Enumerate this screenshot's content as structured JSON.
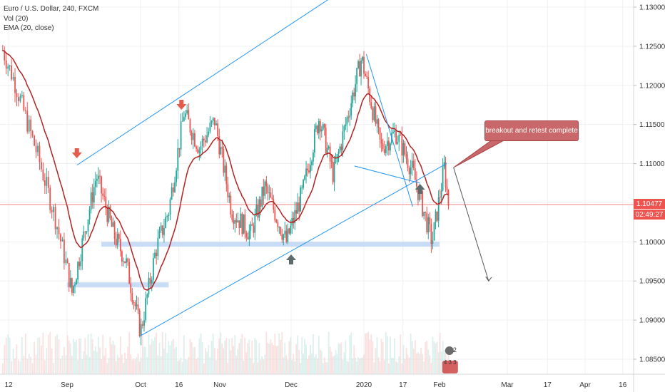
{
  "legend": {
    "symbol": "Euro / U.S. Dollar, 240, FXCM",
    "vol": "Vol (20)",
    "ema": "EMA (20, close)"
  },
  "callout_text": "breakout and retest complete",
  "price_tag": "1.10477",
  "countdown_tag": "02:49:27",
  "event_badges": [
    "2",
    "4",
    "3",
    "3"
  ],
  "colors": {
    "up": "#26a69a",
    "down": "#ef5350",
    "ema": "#b22222",
    "trendline": "#2196f3",
    "zone": "#c9dcf5",
    "arrow_red": "#e55a4b",
    "arrow_gray": "#5c6c6c",
    "price_line": "#ef5350"
  },
  "chart_data": {
    "type": "candlestick",
    "title": "Euro / U.S. Dollar, 240, FXCM",
    "indicators": [
      "Vol (20)",
      "EMA (20, close)"
    ],
    "y_axis": {
      "ticks": [
        "1.13000",
        "1.12500",
        "1.12000",
        "1.11500",
        "1.11000",
        "1.10500",
        "1.10000",
        "1.09500",
        "1.09000",
        "1.08500"
      ],
      "range": [
        1.083,
        1.1315
      ]
    },
    "x_axis": {
      "ticks": [
        "12",
        "Sep",
        "Oct",
        "16",
        "Nov",
        "Dec",
        "2020",
        "17",
        "Feb",
        "Mar",
        "17",
        "Apr",
        "16"
      ]
    },
    "current_price": 1.10477,
    "price_path": [
      [
        "Aug 10",
        1.1245
      ],
      [
        "Aug 14",
        1.1205
      ],
      [
        "Aug 22",
        1.111
      ],
      [
        "Aug 28",
        1.103
      ],
      [
        "Sep 3",
        1.0935
      ],
      [
        "Sep 10",
        1.104
      ],
      [
        "Sep 13",
        1.1085
      ],
      [
        "Sep 20",
        1.101
      ],
      [
        "Sep 25",
        1.0975
      ],
      [
        "Oct 1",
        1.0885
      ],
      [
        "Oct 7",
        1.099
      ],
      [
        "Oct 12",
        1.104
      ],
      [
        "Oct 18",
        1.1165
      ],
      [
        "Oct 24",
        1.112
      ],
      [
        "Oct 30",
        1.1155
      ],
      [
        "Nov 6",
        1.104
      ],
      [
        "Nov 14",
        1.101
      ],
      [
        "Nov 20",
        1.107
      ],
      [
        "Nov 29",
        1.1
      ],
      [
        "Dec 6",
        1.1065
      ],
      [
        "Dec 13",
        1.116
      ],
      [
        "Dec 19",
        1.1085
      ],
      [
        "Dec 31",
        1.1235
      ],
      [
        "Jan 8",
        1.112
      ],
      [
        "Jan 14",
        1.114
      ],
      [
        "Jan 21",
        1.109
      ],
      [
        "Jan 29",
        1.1
      ],
      [
        "Feb 3",
        1.1095
      ],
      [
        "Feb 5",
        1.1045
      ]
    ],
    "annotations": {
      "trend_channel_upper": [
        [
          "Sep 5",
          1.1098
        ],
        [
          "Jan 6",
          1.135
        ]
      ],
      "trend_channel_lower": [
        [
          "Oct 1",
          1.088
        ],
        [
          "Feb 4",
          1.11
        ]
      ],
      "support_zones": [
        {
          "from": "Sep 1",
          "to": "Oct 12",
          "level": 1.0945
        },
        {
          "from": "Sep 15",
          "to": "Feb 1",
          "level": 1.0997
        }
      ],
      "falling_wedge": [
        [
          "Jan 2",
          1.124
        ],
        [
          "Jan 21",
          1.1045
        ]
      ],
      "projection_arrow": [
        [
          "Feb 7",
          1.1095
        ],
        [
          "Feb 22",
          1.095
        ]
      ],
      "down_arrows": [
        "Sep 5",
        "Oct 17"
      ],
      "up_arrows": [
        "Dec 1",
        "Jan 24"
      ]
    },
    "grid": true
  }
}
